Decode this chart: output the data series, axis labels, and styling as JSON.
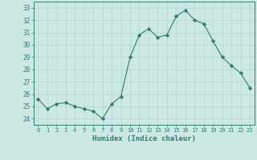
{
  "x": [
    0,
    1,
    2,
    3,
    4,
    5,
    6,
    7,
    8,
    9,
    10,
    11,
    12,
    13,
    14,
    15,
    16,
    17,
    18,
    19,
    20,
    21,
    22,
    23
  ],
  "y": [
    25.6,
    24.8,
    25.2,
    25.3,
    25.0,
    24.8,
    24.6,
    24.0,
    25.2,
    25.8,
    29.0,
    30.8,
    31.3,
    30.6,
    30.8,
    32.3,
    32.8,
    32.0,
    31.7,
    30.3,
    29.0,
    28.3,
    27.7,
    26.5
  ],
  "line_color": "#2e7d6e",
  "marker": "D",
  "marker_size": 2.2,
  "bg_color": "#cce8e4",
  "grid_color": "#b8d4d0",
  "xlabel": "Humidex (Indice chaleur)",
  "ylabel_ticks": [
    24,
    25,
    26,
    27,
    28,
    29,
    30,
    31,
    32,
    33
  ],
  "xlim": [
    -0.5,
    23.5
  ],
  "ylim": [
    23.5,
    33.5
  ],
  "tick_color": "#2e7d6e",
  "label_color": "#2e7d6e"
}
